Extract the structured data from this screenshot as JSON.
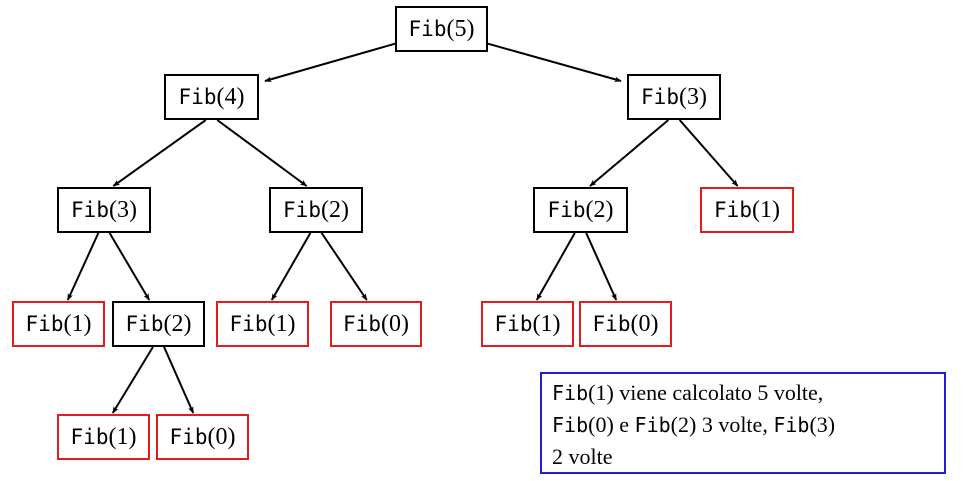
{
  "colors": {
    "internal_border": "#000000",
    "leaf_border": "#e31b1b",
    "note_border": "#1f1fd8"
  },
  "nodes": {
    "n1": {
      "fn": "Fib",
      "arg": "(5)",
      "kind": "internal"
    },
    "n2": {
      "fn": "Fib",
      "arg": "(4)",
      "kind": "internal"
    },
    "n3": {
      "fn": "Fib",
      "arg": "(3)",
      "kind": "internal"
    },
    "n4": {
      "fn": "Fib",
      "arg": "(3)",
      "kind": "internal"
    },
    "n5": {
      "fn": "Fib",
      "arg": "(2)",
      "kind": "internal"
    },
    "n6": {
      "fn": "Fib",
      "arg": "(2)",
      "kind": "internal"
    },
    "n7": {
      "fn": "Fib",
      "arg": "(1)",
      "kind": "leaf"
    },
    "n8": {
      "fn": "Fib",
      "arg": "(1)",
      "kind": "leaf"
    },
    "n9": {
      "fn": "Fib",
      "arg": "(2)",
      "kind": "internal"
    },
    "n10": {
      "fn": "Fib",
      "arg": "(1)",
      "kind": "leaf"
    },
    "n11": {
      "fn": "Fib",
      "arg": "(0)",
      "kind": "leaf"
    },
    "n12": {
      "fn": "Fib",
      "arg": "(1)",
      "kind": "leaf"
    },
    "n13": {
      "fn": "Fib",
      "arg": "(0)",
      "kind": "leaf"
    },
    "n14": {
      "fn": "Fib",
      "arg": "(1)",
      "kind": "leaf"
    },
    "n15": {
      "fn": "Fib",
      "arg": "(0)",
      "kind": "leaf"
    }
  },
  "edges": [
    [
      "n1",
      "n2"
    ],
    [
      "n1",
      "n3"
    ],
    [
      "n2",
      "n4"
    ],
    [
      "n2",
      "n5"
    ],
    [
      "n3",
      "n6"
    ],
    [
      "n3",
      "n7"
    ],
    [
      "n4",
      "n8"
    ],
    [
      "n4",
      "n9"
    ],
    [
      "n5",
      "n10"
    ],
    [
      "n5",
      "n11"
    ],
    [
      "n6",
      "n12"
    ],
    [
      "n6",
      "n13"
    ],
    [
      "n9",
      "n14"
    ],
    [
      "n9",
      "n15"
    ]
  ],
  "note": {
    "line1": {
      "fn": "Fib",
      "rest": "(1) viene calcolato 5 volte,"
    },
    "line2": {
      "fn_a": "Fib",
      "mid_a": "(0) e ",
      "fn_b": "Fib",
      "mid_b": "(2) 3 volte, ",
      "fn_c": "Fib",
      "end": "(3)"
    },
    "line3": "2 volte"
  }
}
